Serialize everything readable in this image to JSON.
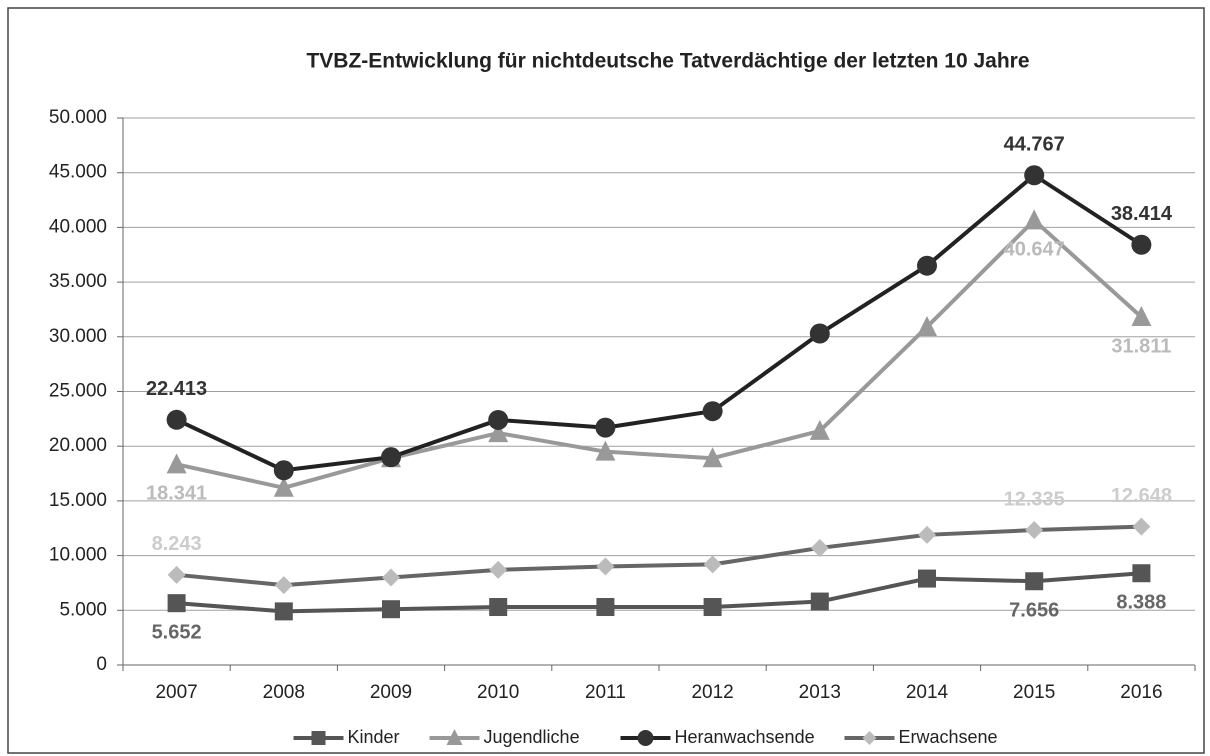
{
  "chart_data": {
    "type": "line",
    "title": "TVBZ-Entwicklung  für nichtdeutsche Tatverdächtige der letzten 10 Jahre",
    "categories": [
      "2007",
      "2008",
      "2009",
      "2010",
      "2011",
      "2012",
      "2013",
      "2014",
      "2015",
      "2016"
    ],
    "series": [
      {
        "name": "Kinder",
        "color": "#555555",
        "marker": "square",
        "marker_color": "#555555",
        "label_color": "#666666",
        "values": [
          5652,
          4900,
          5100,
          5300,
          5300,
          5300,
          5800,
          7900,
          7656,
          8388
        ],
        "value_labels": [
          "5.652",
          null,
          null,
          null,
          null,
          null,
          null,
          null,
          "7.656",
          "8.388"
        ]
      },
      {
        "name": "Jugendliche",
        "color": "#999999",
        "marker": "triangle",
        "marker_color": "#999999",
        "label_color": "#bbbbbb",
        "values": [
          18341,
          16200,
          18900,
          21200,
          19500,
          18900,
          21400,
          30900,
          40647,
          31811
        ],
        "value_labels": [
          "18.341",
          null,
          null,
          null,
          null,
          null,
          null,
          null,
          "40.647",
          "31.811"
        ]
      },
      {
        "name": "Heranwachsende",
        "color": "#222222",
        "marker": "circle",
        "marker_color": "#333333",
        "label_color": "#333333",
        "values": [
          22413,
          17800,
          19000,
          22400,
          21700,
          23200,
          30300,
          36500,
          44767,
          38414
        ],
        "value_labels": [
          "22.413",
          null,
          null,
          null,
          null,
          null,
          null,
          null,
          "44.767",
          "38.414"
        ]
      },
      {
        "name": "Erwachsene",
        "color": "#666666",
        "marker": "diamond",
        "marker_color": "#bbbbbb",
        "label_color": "#cccccc",
        "values": [
          8243,
          7300,
          8000,
          8700,
          9000,
          9200,
          10700,
          11900,
          12335,
          12648
        ],
        "value_labels": [
          "8.243",
          null,
          null,
          null,
          null,
          null,
          null,
          null,
          "12.335",
          "12.648"
        ]
      }
    ],
    "ylim": [
      0,
      50000
    ],
    "yticks": [
      0,
      {
        "value": 5000,
        "label": "5.000"
      },
      {
        "value": 10000,
        "label": "10.000"
      },
      {
        "value": 15000,
        "label": "15.000"
      },
      {
        "value": 20000,
        "label": "20.000"
      },
      {
        "value": 25000,
        "label": "25.000"
      },
      {
        "value": 30000,
        "label": "30.000"
      },
      {
        "value": 35000,
        "label": "35.000"
      },
      {
        "value": 40000,
        "label": "40.000"
      },
      {
        "value": 45000,
        "label": "45.000"
      },
      {
        "value": 50000,
        "label": "50.000"
      }
    ],
    "grid": true,
    "legend": "bottom"
  }
}
